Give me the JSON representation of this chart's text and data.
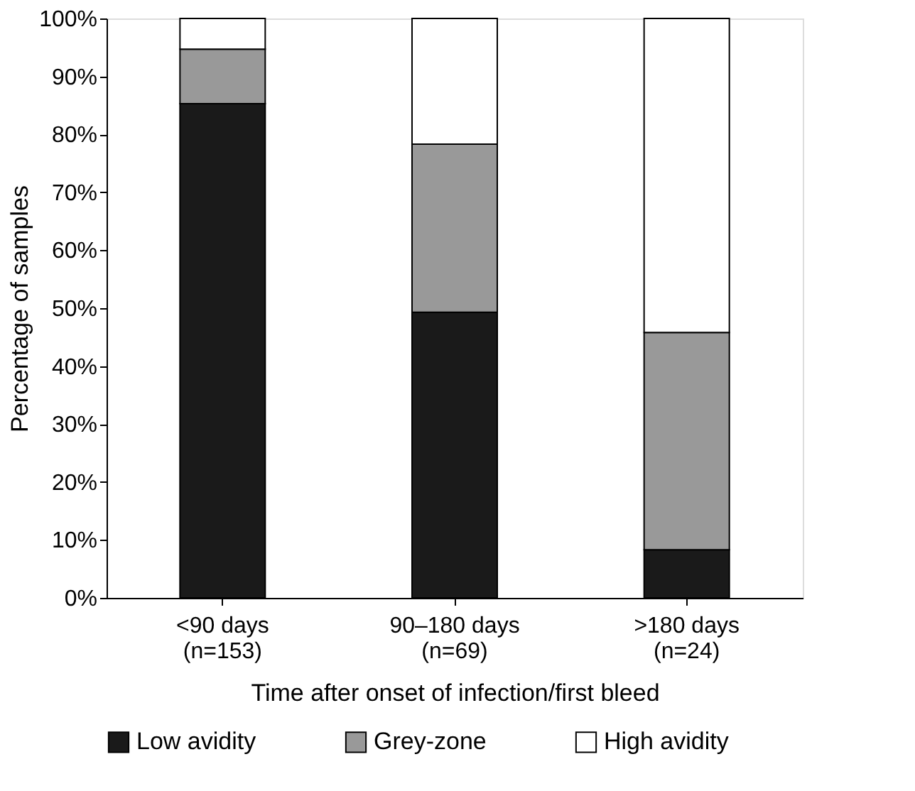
{
  "chart_data": {
    "type": "bar",
    "stacked": true,
    "xlabel": "Time after onset of infection/first bleed",
    "ylabel": "Percentage of samples",
    "categories": [
      "<90 days\n(n=153)",
      "90–180 days\n(n=69)",
      ">180 days\n(n=24)"
    ],
    "series": [
      {
        "name": "Low avidity",
        "color": "#1a1a1a",
        "values": [
          85.3,
          49.3,
          8.3
        ]
      },
      {
        "name": "Grey-zone",
        "color": "#999999",
        "values": [
          9.4,
          29.0,
          37.5
        ]
      },
      {
        "name": "High avidity",
        "color": "#ffffff",
        "values": [
          5.3,
          21.7,
          54.2
        ]
      }
    ],
    "ylim": [
      0,
      100
    ],
    "yticks": [
      {
        "value": 0,
        "label": "0%"
      },
      {
        "value": 10,
        "label": "10%"
      },
      {
        "value": 20,
        "label": "20%"
      },
      {
        "value": 30,
        "label": "30%"
      },
      {
        "value": 40,
        "label": "40%"
      },
      {
        "value": 50,
        "label": "50%"
      },
      {
        "value": 60,
        "label": "60%"
      },
      {
        "value": 70,
        "label": "70%"
      },
      {
        "value": 80,
        "label": "80%"
      },
      {
        "value": 90,
        "label": "90%"
      },
      {
        "value": 100,
        "label": "100%"
      }
    ],
    "grid": false,
    "legend": "bottom"
  }
}
